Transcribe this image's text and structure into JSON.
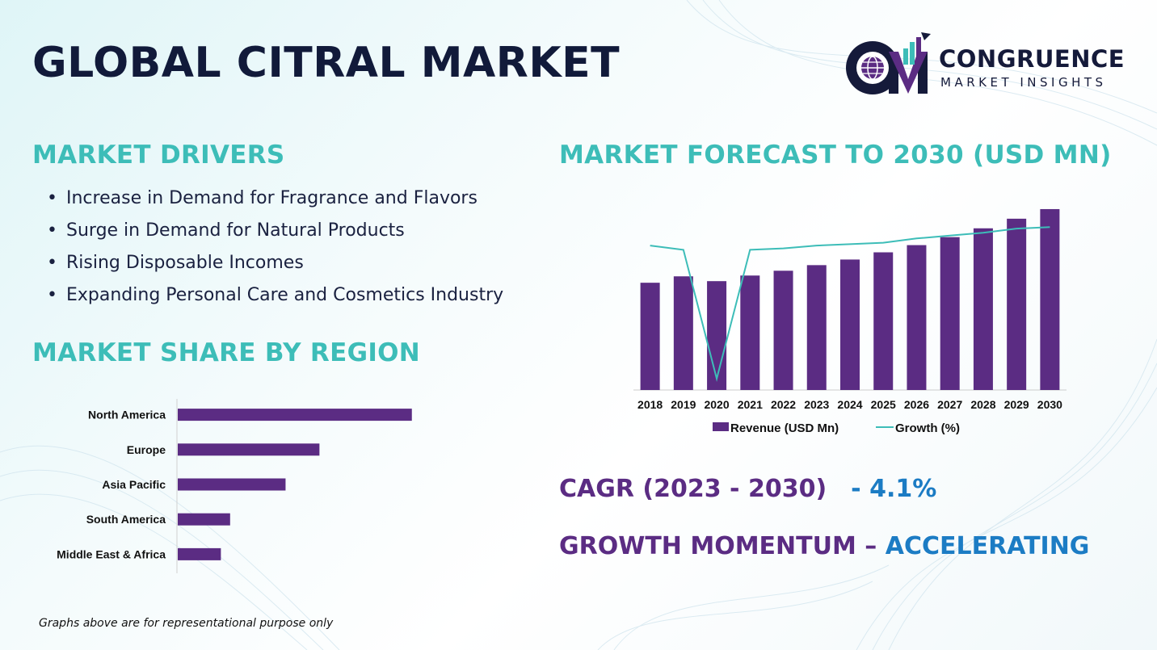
{
  "page": {
    "title": "GLOBAL CITRAL MARKET",
    "footnote": "Graphs above are for representational purpose only"
  },
  "logo": {
    "brand": "CONGRUENCE",
    "tagline": "MARKET INSIGHTS",
    "icon": "cmi-logo-icon"
  },
  "drivers": {
    "title": "MARKET DRIVERS",
    "items": [
      "Increase in Demand for Fragrance and Flavors",
      "Surge in Demand for Natural Products",
      "Rising Disposable Incomes",
      "Expanding Personal Care and Cosmetics Industry"
    ]
  },
  "region": {
    "title": "MARKET SHARE BY REGION"
  },
  "forecast": {
    "title": "MARKET FORECAST TO 2030 (USD MN)"
  },
  "cagr": {
    "label": "CAGR (2023 - 2030)",
    "value": "- 4.1%"
  },
  "momentum": {
    "label": "GROWTH MOMENTUM –",
    "value": "ACCELERATING"
  },
  "colors": {
    "purple": "#5b2c83",
    "teal": "#3dbdb8",
    "navy": "#111a3a",
    "blue": "#1c7cc4"
  },
  "chart_data": [
    {
      "type": "bar",
      "orientation": "horizontal",
      "categories": [
        "North America",
        "Europe",
        "Asia Pacific",
        "South America",
        "Middle East & Africa"
      ],
      "values": [
        38,
        23,
        17.5,
        8.5,
        7
      ],
      "xlim": [
        0,
        40
      ],
      "color": "#5b2c83"
    },
    {
      "type": "bar",
      "categories": [
        "2018",
        "2019",
        "2020",
        "2021",
        "2022",
        "2023",
        "2024",
        "2025",
        "2026",
        "2027",
        "2028",
        "2029",
        "2030"
      ],
      "series": [
        {
          "name": "Revenue (USD Mn)",
          "type": "bar",
          "values": [
            67,
            71,
            68,
            71.5,
            74.5,
            78,
            81.5,
            86,
            90.5,
            95.5,
            101,
            107,
            113
          ],
          "color": "#5b2c83"
        },
        {
          "name": "Growth (%)",
          "type": "line",
          "values": [
            5.2,
            4.9,
            -4.2,
            4.9,
            5.0,
            5.2,
            5.3,
            5.4,
            5.7,
            5.9,
            6.1,
            6.4,
            6.5
          ],
          "color": "#3dbdb8"
        }
      ],
      "ylim": [
        0,
        115
      ],
      "growth_range": [
        -5,
        8
      ],
      "legend": "bottom"
    }
  ]
}
